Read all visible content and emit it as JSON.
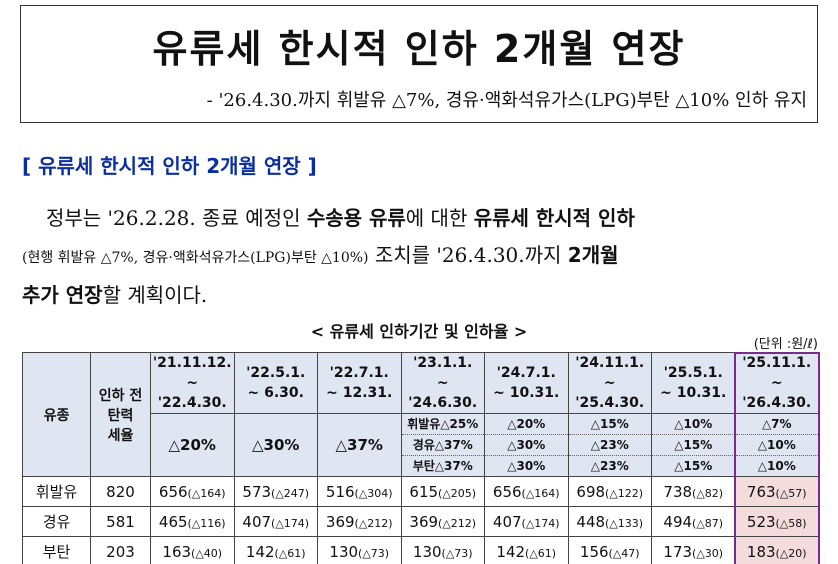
{
  "header": {
    "title": "유류세 한시적 인하 2개월 연장",
    "subtitle": "- '26.4.30.까지 휘발유 △7%, 경유·액화석유가스(LPG)부탄 △10% 인하 유지"
  },
  "section_heading": "[ 유류세 한시적 인하 2개월 연장 ]",
  "paragraph": {
    "lines": [
      [
        "정부는 '26.2.28. 종료 예정인 ",
        "수송용 유류",
        "에 대한 ",
        "유류세 한시적 인하"
      ],
      [
        "(현행 휘발유 △7%, 경유·액화석유가스(LPG)부탄 △10%)",
        " 조치를 '26.4.30.까지 ",
        "2개월"
      ],
      [
        "추가 연장",
        "할 계획이다."
      ]
    ]
  },
  "table": {
    "caption": "< 유류세 인하기간 및 인하율 >",
    "unit": "(단위 :원/ℓ)",
    "header": {
      "fuel": "유종",
      "base": [
        "인하 전",
        "탄력",
        "세율"
      ],
      "periods": [
        [
          "'21.11.12.",
          "~ '22.4.30."
        ],
        [
          "'22.5.1.",
          "~ 6.30."
        ],
        [
          "'22.7.1.",
          "~ 12.31."
        ],
        [
          "'23.1.1.",
          "~ '24.6.30."
        ],
        [
          "'24.7.1.",
          "~ 10.31."
        ],
        [
          "'24.11.1.",
          "~ '25.4.30."
        ],
        [
          "'25.5.1.",
          "~ 10.31."
        ],
        [
          "'25.11.1.",
          "~ '26.4.30."
        ]
      ],
      "rates": [
        [
          "△20%"
        ],
        [
          "△30%"
        ],
        [
          "△37%"
        ],
        [
          "휘발유△25%",
          "경유△37%",
          "부탄△37%"
        ],
        [
          "△20%",
          "△30%",
          "△30%"
        ],
        [
          "△15%",
          "△23%",
          "△23%"
        ],
        [
          "△10%",
          "△15%",
          "△15%"
        ],
        [
          "△7%",
          "△10%",
          "△10%"
        ]
      ]
    },
    "rows": [
      {
        "fuel": "휘발유",
        "base": "820",
        "cells": [
          [
            "656",
            "(△164)"
          ],
          [
            "573",
            "(△247)"
          ],
          [
            "516",
            "(△304)"
          ],
          [
            "615",
            "(△205)"
          ],
          [
            "656",
            "(△164)"
          ],
          [
            "698",
            "(△122)"
          ],
          [
            "738",
            "(△82)"
          ],
          [
            "763",
            "(△57)"
          ]
        ]
      },
      {
        "fuel": "경유",
        "base": "581",
        "cells": [
          [
            "465",
            "(△116)"
          ],
          [
            "407",
            "(△174)"
          ],
          [
            "369",
            "(△212)"
          ],
          [
            "369",
            "(△212)"
          ],
          [
            "407",
            "(△174)"
          ],
          [
            "448",
            "(△133)"
          ],
          [
            "494",
            "(△87)"
          ],
          [
            "523",
            "(△58)"
          ]
        ]
      },
      {
        "fuel": "부탄",
        "base": "203",
        "cells": [
          [
            "163",
            "(△40)"
          ],
          [
            "142",
            "(△61)"
          ],
          [
            "130",
            "(△73)"
          ],
          [
            "130",
            "(△73)"
          ],
          [
            "142",
            "(△61)"
          ],
          [
            "156",
            "(△47)"
          ],
          [
            "173",
            "(△30)"
          ],
          [
            "183",
            "(△20)"
          ]
        ]
      }
    ]
  }
}
